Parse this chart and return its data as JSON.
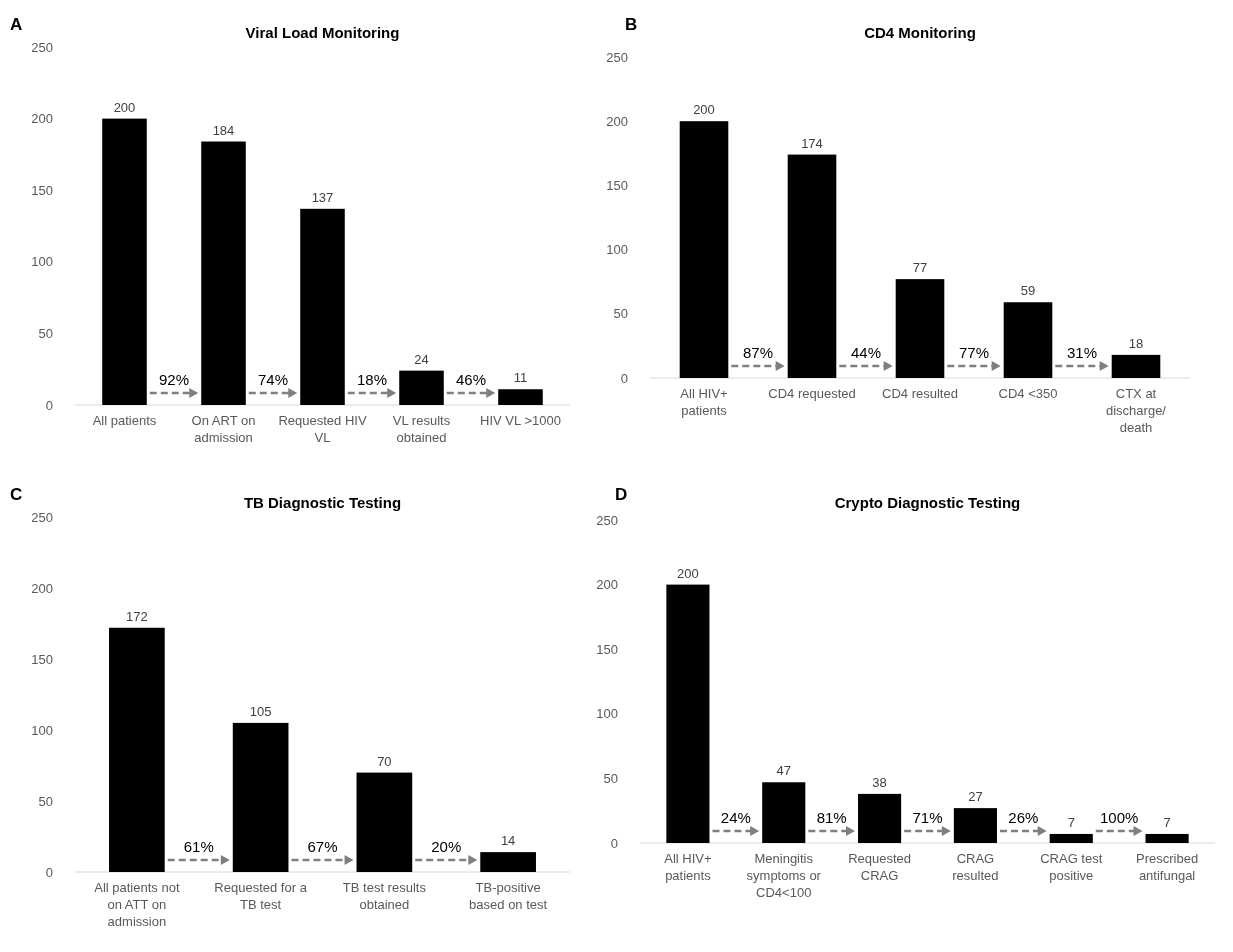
{
  "chart_data": [
    {
      "type": "bar",
      "title": "Viral Load Monitoring",
      "categories": [
        "All patients",
        "On ART on admission",
        "Requested HIV VL",
        "VL results obtained",
        "HIV VL >1000"
      ],
      "values": [
        200,
        184,
        137,
        24,
        11
      ],
      "color": "#000000",
      "ylim": [
        0,
        250
      ],
      "yticks": [
        0,
        50,
        100,
        150,
        200,
        250
      ],
      "data_labels": true,
      "annotations": [
        "A",
        "92%",
        "74%",
        "18%",
        "46%"
      ]
    },
    {
      "type": "bar",
      "title": "CD4 Monitoring",
      "categories": [
        "All HIV+ patients",
        "CD4 requested",
        "CD4 resulted",
        "CD4 <350",
        "CTX at discharge/ death"
      ],
      "values": [
        200,
        174,
        77,
        59,
        18
      ],
      "color": "#000000",
      "ylim": [
        0,
        250
      ],
      "yticks": [
        0,
        50,
        100,
        150,
        200,
        250
      ],
      "data_labels": true,
      "annotations": [
        "B",
        "87%",
        "44%",
        "77%",
        "31%"
      ]
    },
    {
      "type": "bar",
      "title": "TB Diagnostic Testing",
      "categories": [
        "All patients not on ATT on admission",
        "Requested for a TB test",
        "TB test results obtained",
        "TB-positive based on test"
      ],
      "values": [
        172,
        105,
        70,
        14
      ],
      "color": "#000000",
      "ylim": [
        0,
        250
      ],
      "yticks": [
        0,
        50,
        100,
        150,
        200,
        250
      ],
      "data_labels": true,
      "annotations": [
        "C",
        "61%",
        "67%",
        "20%"
      ]
    },
    {
      "type": "bar",
      "title": "Crypto Diagnostic Testing",
      "categories": [
        "All HIV+ patients",
        "Meningitis symptoms or CD4<100",
        "Requested CRAG",
        "CRAG resulted",
        "CRAG test positive",
        "Prescribed antifungal"
      ],
      "values": [
        200,
        47,
        38,
        27,
        7,
        7
      ],
      "color": "#000000",
      "ylim": [
        0,
        250
      ],
      "yticks": [
        0,
        50,
        100,
        150,
        200,
        250
      ],
      "data_labels": true,
      "annotations": [
        "D",
        "24%",
        "81%",
        "71%",
        "26%",
        "100%"
      ]
    }
  ]
}
